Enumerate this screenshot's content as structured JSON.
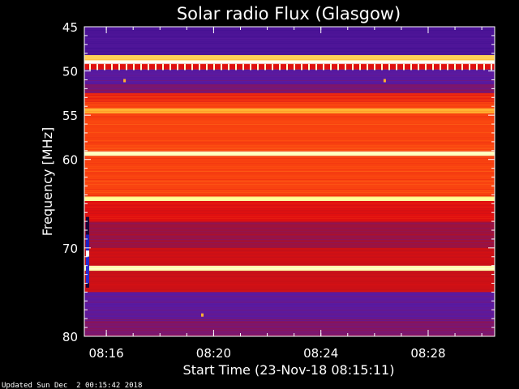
{
  "chart_data": {
    "type": "heatmap",
    "title": "Solar radio Flux (Glasgow)",
    "xlabel": "Start Time (23-Nov-18 08:15:11)",
    "ylabel": "Frequency [MHz]",
    "x_start": "08:15:11",
    "x_end": "08:30:30",
    "xlim_minutes": [
      0,
      15.3
    ],
    "x_ticks": [
      "08:16",
      "08:20",
      "08:24",
      "08:28"
    ],
    "x_tick_minutes": [
      0.82,
      4.82,
      8.82,
      12.82
    ],
    "ylim": [
      45,
      80
    ],
    "y_inverted": true,
    "y_ticks": [
      45,
      50,
      55,
      60,
      70,
      80
    ],
    "bands": [
      {
        "from": 45,
        "to": 48.2,
        "level": 0.2
      },
      {
        "from": 48.2,
        "to": 48.8,
        "level": 0.8
      },
      {
        "from": 48.8,
        "to": 49.2,
        "level": 1.0
      },
      {
        "from": 49.2,
        "to": 49.8,
        "level": 0.5
      },
      {
        "from": 49.8,
        "to": 51.5,
        "level": 0.25
      },
      {
        "from": 51.5,
        "to": 52.5,
        "level": 0.3
      },
      {
        "from": 52.5,
        "to": 53.5,
        "level": 0.55
      },
      {
        "from": 53.5,
        "to": 54.2,
        "level": 0.6
      },
      {
        "from": 54.2,
        "to": 54.8,
        "level": 0.75
      },
      {
        "from": 54.8,
        "to": 59.1,
        "level": 0.6
      },
      {
        "from": 59.1,
        "to": 59.6,
        "level": 0.92
      },
      {
        "from": 59.6,
        "to": 64.2,
        "level": 0.6
      },
      {
        "from": 64.2,
        "to": 64.7,
        "level": 0.88
      },
      {
        "from": 64.7,
        "to": 67,
        "level": 0.5
      },
      {
        "from": 67,
        "to": 70,
        "level": 0.35
      },
      {
        "from": 70,
        "to": 72,
        "level": 0.45
      },
      {
        "from": 72,
        "to": 72.6,
        "level": 0.92
      },
      {
        "from": 72.6,
        "to": 75,
        "level": 0.45
      },
      {
        "from": 75,
        "to": 78,
        "level": 0.25
      },
      {
        "from": 78,
        "to": 80,
        "level": 0.3
      }
    ],
    "events": [
      {
        "minute": 0.12,
        "from": 66.5,
        "to": 74.5,
        "kind": "burst"
      },
      {
        "minute": 1.5,
        "from": 51,
        "to": 51.3,
        "kind": "spot"
      },
      {
        "minute": 11.2,
        "from": 51,
        "to": 51.3,
        "kind": "spot"
      },
      {
        "minute": 4.4,
        "from": 77.5,
        "to": 77.8,
        "kind": "spot"
      }
    ],
    "colorscale": [
      "#000000",
      "#3a0a8a",
      "#5a1aa0",
      "#b01020",
      "#e01010",
      "#ff5010",
      "#ffb030",
      "#ffff90",
      "#ffffff"
    ]
  },
  "footer": "Updated Sun Dec  2 00:15:42 2018"
}
